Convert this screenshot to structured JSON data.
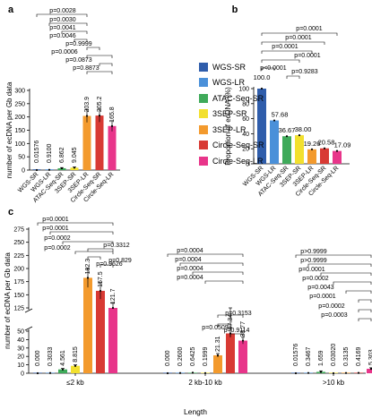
{
  "colors": {
    "WGS-SR": "#2f5dab",
    "WGS-LR": "#4a90d9",
    "ATAC-Seq-SR": "#3faa5a",
    "3SEP-SR": "#f2e02e",
    "3SEP-LR": "#f39a2d",
    "Circle-Seq-SR": "#d83a34",
    "Circle-Seq-LR": "#e8358a"
  },
  "legend": [
    "WGS-SR",
    "WGS-LR",
    "ATAC-Seq-SR",
    "3SEP-SR",
    "3SEP-LR",
    "Circle-Seq-SR",
    "Circle-Seq-LR"
  ],
  "chart_data": [
    {
      "panel": "a",
      "type": "bar",
      "ylabel": "number of ecDNA per Gb data",
      "yticks": [
        0,
        50,
        100,
        150,
        200,
        250,
        300
      ],
      "ylim": [
        0,
        300
      ],
      "categories": [
        "WGS-SR",
        "WGS-LR",
        "ATAC-Seq-SR",
        "3SEP-SR",
        "3SEP-LR",
        "Circle-Seq-SR",
        "Circle-Seq-LR"
      ],
      "values": [
        0.01576,
        0.91,
        6.862,
        9.045,
        203.9,
        205.2,
        165.8
      ],
      "value_labels": [
        "0.01576",
        "0.9100",
        "6.862",
        "9.045",
        "203.9",
        "205.2",
        "165.8"
      ],
      "pvalues": [
        "p=0.0028",
        "p=0.0030",
        "p=0.0041",
        "p=0.0046",
        "p=0.9999",
        "p=0.0006",
        "p=0.0873",
        "p=0.8873"
      ]
    },
    {
      "panel": "b",
      "type": "bar",
      "ylabel": "Proportion of ecDNA (%)",
      "yticks": [
        0,
        20,
        40,
        60,
        80,
        100
      ],
      "ylim": [
        0,
        100
      ],
      "categories": [
        "WGS-SR",
        "WGS-LR",
        "ATAC-Seq-SR",
        "3SEP-SR",
        "3SEP-LR",
        "Circle-Seq-SR",
        "Circle-Seq-LR"
      ],
      "values": [
        100.0,
        57.68,
        36.67,
        38.0,
        19.26,
        20.58,
        17.09
      ],
      "value_labels": [
        "100.0",
        "57.68",
        "36.67",
        "38.00",
        "19.26",
        "20.58",
        "17.09"
      ],
      "pvalues": [
        "p=0.0001",
        "p=0.0001",
        "p=0.0001",
        "p=0.0001",
        "p<0.0001",
        "p=0.9283",
        "p<0.0001",
        "p<0.0001"
      ]
    },
    {
      "panel": "c",
      "type": "bar",
      "xlabel": "Length",
      "ylabel": "number of ecDNA per Gb data",
      "yticks_upper": [
        125,
        150,
        175,
        200,
        225,
        250,
        275
      ],
      "yticks_lower": [
        0,
        10,
        20,
        30,
        40,
        50
      ],
      "axis_break": true,
      "groups": [
        "≤2 kb",
        "2 kb-10 kb",
        ">10 kb"
      ],
      "series": [
        {
          "name": "WGS-SR",
          "values": [
            0.0,
            0.0,
            0.01576
          ],
          "value_labels": [
            "0.000",
            "0.000",
            "0.01576"
          ]
        },
        {
          "name": "WGS-LR",
          "values": [
            0.3033,
            0.26,
            0.3467
          ],
          "value_labels": [
            "0.3033",
            "0.2600",
            "0.3467"
          ]
        },
        {
          "name": "ATAC-Seq-SR",
          "values": [
            4.561,
            0.6425,
            1.659
          ],
          "value_labels": [
            "4.561",
            "0.6425",
            "1.659"
          ]
        },
        {
          "name": "3SEP-SR",
          "values": [
            8.815,
            0.1999,
            0.0302
          ],
          "value_labels": [
            "8.815",
            "0.1999",
            "0.03020"
          ]
        },
        {
          "name": "3SEP-LR",
          "values": [
            182.3,
            21.31,
            0.3135
          ],
          "value_labels": [
            "182.3",
            "21.31",
            "0.3135"
          ]
        },
        {
          "name": "Circle-Seq-SR",
          "values": [
            157.5,
            47.34,
            0.4169
          ],
          "value_labels": [
            "157.5",
            "47.34",
            "0.4169"
          ]
        },
        {
          "name": "Circle-Seq-LR",
          "values": [
            121.7,
            38.77,
            5.303
          ],
          "value_labels": [
            "121.7",
            "38.77",
            "5.303"
          ]
        }
      ],
      "pvalues": [
        [
          "p=0.0001",
          "p=0.0001",
          "p=0.0002",
          "p=0.0002",
          "p=0.3312",
          "p=0.9626",
          "p=0.829"
        ],
        [
          "p=0.0004",
          "p=0.0004",
          "p=0.0004",
          "p=0.0004",
          "p=0.3153",
          "p=0.0509",
          "p=0.9114"
        ],
        [
          "p>0.9999",
          "p>0.9999",
          "p=0.0001",
          "p=0.0002",
          "p=0.0043",
          "p=0.0001",
          "p=0.0002",
          "p=0.0003"
        ]
      ]
    }
  ],
  "panel_labels": [
    "a",
    "b",
    "c"
  ]
}
